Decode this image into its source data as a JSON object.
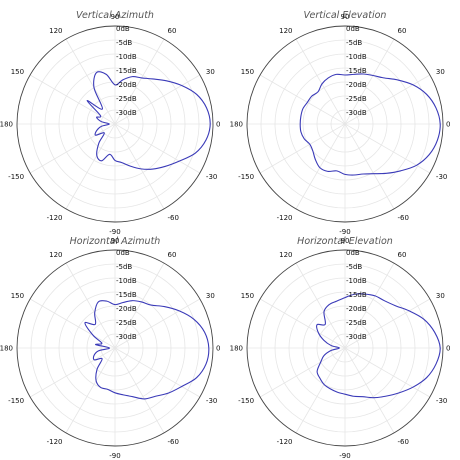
{
  "colors": {
    "pattern": "#3a3ab8",
    "grid": "#e6e6e6",
    "outer_ring": "#444444",
    "text": "#111111",
    "title": "#555555"
  },
  "chart_data": [
    {
      "type": "polar",
      "title": "Vertical Azimuth",
      "ring_labels": [
        "0dB",
        "-5dB",
        "-10dB",
        "-15dB",
        "-20dB",
        "-25dB",
        "-30dB"
      ],
      "angle_labels": [
        "0",
        "30",
        "60",
        "90",
        "120",
        "150",
        "180",
        "-150",
        "-120",
        "-90",
        "-60",
        "-30"
      ],
      "r_min_db": -35,
      "r_max_db": 0,
      "series": [
        {
          "angles": [
            0,
            10,
            20,
            30,
            40,
            50,
            60,
            70,
            80,
            90,
            100,
            110,
            120,
            130,
            140,
            150,
            160,
            170,
            180,
            190,
            200,
            210,
            220,
            230,
            240,
            250,
            260,
            270,
            280,
            290,
            300,
            310,
            320,
            330,
            340,
            350
          ],
          "values_db": [
            -1,
            -1.8,
            -4,
            -7.5,
            -11,
            -14,
            -16,
            -17,
            -19,
            -21,
            -17,
            -15.5,
            -20,
            -28,
            -22,
            -29,
            -28,
            -30,
            -33,
            -30,
            -28,
            -27,
            -30,
            -26,
            -22,
            -21,
            -24,
            -22,
            -21,
            -19,
            -16.5,
            -14,
            -11.5,
            -8.5,
            -4.5,
            -2
          ]
        }
      ]
    },
    {
      "type": "polar",
      "title": "Vertical Elevation",
      "ring_labels": [
        "0dB",
        "-5dB",
        "-10dB",
        "-15dB",
        "-20dB",
        "-25dB",
        "-30dB"
      ],
      "angle_labels": [
        "0",
        "30",
        "60",
        "90",
        "120",
        "150",
        "180",
        "-150",
        "-120",
        "-90",
        "-60",
        "-30"
      ],
      "r_min_db": -35,
      "r_max_db": 0,
      "series": [
        {
          "angles": [
            0,
            10,
            20,
            30,
            40,
            50,
            60,
            70,
            80,
            90,
            100,
            110,
            120,
            130,
            140,
            150,
            160,
            170,
            180,
            190,
            200,
            210,
            220,
            230,
            240,
            250,
            260,
            270,
            280,
            290,
            300,
            310,
            320,
            330,
            340,
            350
          ],
          "values_db": [
            -1,
            -2,
            -4,
            -7,
            -10.5,
            -13.5,
            -15,
            -16,
            -17,
            -17.5,
            -17,
            -17.5,
            -18.5,
            -20,
            -19.5,
            -19.5,
            -19,
            -19,
            -19,
            -19,
            -19.5,
            -20.5,
            -20,
            -18.5,
            -17,
            -17,
            -18,
            -17,
            -16.5,
            -16,
            -14.5,
            -12,
            -9,
            -5.5,
            -3,
            -1.5
          ]
        }
      ]
    },
    {
      "type": "polar",
      "title": "Horizontal Azimuth",
      "ring_labels": [
        "0dB",
        "-5dB",
        "-10dB",
        "-15dB",
        "-20dB",
        "-25dB",
        "-30dB"
      ],
      "angle_labels": [
        "0",
        "30",
        "60",
        "90",
        "120",
        "150",
        "180",
        "-150",
        "-120",
        "-90",
        "-60",
        "-30"
      ],
      "r_min_db": -35,
      "r_max_db": 0,
      "series": [
        {
          "angles": [
            0,
            10,
            20,
            30,
            40,
            50,
            60,
            70,
            80,
            90,
            100,
            110,
            120,
            130,
            140,
            150,
            160,
            170,
            180,
            190,
            200,
            210,
            220,
            230,
            240,
            250,
            260,
            270,
            280,
            290,
            300,
            310,
            320,
            330,
            340,
            350
          ],
          "values_db": [
            -1.5,
            -2.5,
            -5,
            -8.5,
            -12,
            -15,
            -16,
            -17,
            -18.5,
            -19.5,
            -18,
            -17.5,
            -20.5,
            -24,
            -21,
            -26,
            -30,
            -28,
            -33,
            -29,
            -27,
            -26.5,
            -29,
            -25,
            -21.5,
            -20,
            -20,
            -19,
            -18,
            -16.5,
            -14,
            -12.5,
            -10,
            -7.5,
            -4,
            -2
          ]
        }
      ]
    },
    {
      "type": "polar",
      "title": "Horizontal Elevation",
      "ring_labels": [
        "0dB",
        "-5dB",
        "-10dB",
        "-15dB",
        "-20dB",
        "-25dB",
        "-30dB"
      ],
      "angle_labels": [
        "0",
        "30",
        "60",
        "90",
        "120",
        "150",
        "180",
        "-150",
        "-120",
        "-90",
        "-60",
        "-30"
      ],
      "r_min_db": -35,
      "r_max_db": 0,
      "series": [
        {
          "angles": [
            0,
            10,
            20,
            30,
            40,
            50,
            60,
            70,
            80,
            90,
            100,
            110,
            120,
            130,
            140,
            150,
            160,
            170,
            180,
            190,
            200,
            210,
            220,
            230,
            240,
            250,
            260,
            270,
            280,
            290,
            300,
            310,
            320,
            330,
            340,
            350
          ],
          "values_db": [
            -1,
            -2.5,
            -5,
            -8.5,
            -11.5,
            -13,
            -13.5,
            -14.5,
            -15.5,
            -17,
            -18,
            -18.5,
            -20,
            -24,
            -22,
            -24,
            -27,
            -30,
            -33,
            -30,
            -27,
            -25,
            -22,
            -21,
            -20,
            -19.5,
            -19,
            -18.5,
            -17.5,
            -16.5,
            -14.5,
            -12.5,
            -10,
            -7,
            -4,
            -2
          ]
        }
      ]
    }
  ]
}
